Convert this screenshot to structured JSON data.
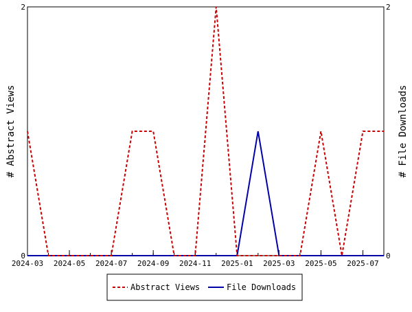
{
  "chart_data": {
    "type": "line",
    "categories": [
      "2024-03",
      "2024-04",
      "2024-05",
      "2024-06",
      "2024-07",
      "2024-08",
      "2024-09",
      "2024-10",
      "2024-11",
      "2024-12",
      "2025-01",
      "2025-02",
      "2025-03",
      "2025-04",
      "2025-05",
      "2025-06",
      "2025-07",
      "2025-08"
    ],
    "x_tick_labels": [
      "2024-03",
      "2024-05",
      "2024-07",
      "2024-09",
      "2024-11",
      "2025-01",
      "2025-03",
      "2025-05",
      "2025-07"
    ],
    "series": [
      {
        "name": "Abstract Views",
        "axis": "left",
        "color": "#cc0000",
        "style": "dashed",
        "values": [
          1,
          0,
          0,
          0,
          0,
          1,
          1,
          0,
          0,
          2,
          0,
          0,
          0,
          0,
          1,
          0,
          1,
          1
        ]
      },
      {
        "name": "File Downloads",
        "axis": "right",
        "color": "#0000aa",
        "style": "solid",
        "values": [
          0,
          0,
          0,
          0,
          0,
          0,
          0,
          0,
          0,
          0,
          0,
          1,
          0,
          0,
          0,
          0,
          0,
          0
        ]
      }
    ],
    "ylabel_left": "# Abstract Views",
    "ylabel_right": "# File Downloads",
    "ylim_left": [
      0,
      2
    ],
    "ylim_right": [
      0,
      2
    ],
    "y_ticks_left": [
      "0",
      "2"
    ],
    "y_ticks_right": [
      "0",
      "2"
    ],
    "grid": false,
    "legend_position": "bottom-center"
  }
}
